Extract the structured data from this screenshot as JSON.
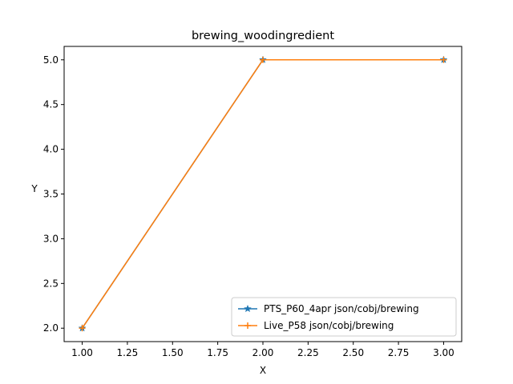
{
  "chart_data": {
    "type": "line",
    "title": "brewing_woodingredient",
    "xlabel": "X",
    "ylabel": "Y",
    "xlim": [
      0.9,
      3.1
    ],
    "ylim": [
      1.85,
      5.15
    ],
    "xticks": [
      "1.00",
      "1.25",
      "1.50",
      "1.75",
      "2.00",
      "2.25",
      "2.50",
      "2.75",
      "3.00"
    ],
    "yticks": [
      "2.0",
      "2.5",
      "3.0",
      "3.5",
      "4.0",
      "4.5",
      "5.0"
    ],
    "grid": false,
    "legend_position": "lower-right",
    "series": [
      {
        "name": "PTS_P60_4apr json/cobj/brewing",
        "x": [
          1,
          2,
          3
        ],
        "y": [
          2,
          5,
          5
        ],
        "color": "#1f77b4",
        "marker": "star"
      },
      {
        "name": "Live_P58 json/cobj/brewing",
        "x": [
          1,
          2,
          3
        ],
        "y": [
          2,
          5,
          5
        ],
        "color": "#ff7f0e",
        "marker": "plus"
      }
    ]
  }
}
